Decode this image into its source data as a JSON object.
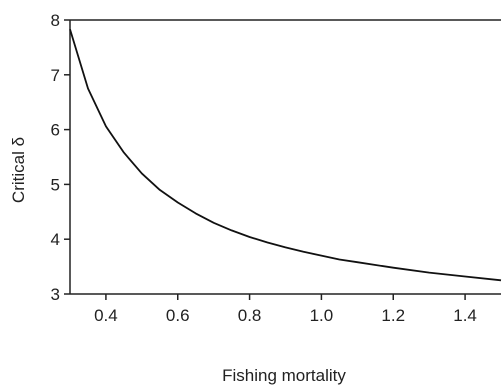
{
  "chart_data": {
    "type": "line",
    "title": "",
    "xlabel": "Fishing mortality",
    "ylabel": "Critical δ",
    "xlim": [
      0.3,
      1.5
    ],
    "ylim": [
      3,
      8
    ],
    "xticks": [
      0.4,
      0.6,
      0.8,
      1.0,
      1.2,
      1.4
    ],
    "xtick_labels": [
      "0.4",
      "0.6",
      "0.8",
      "1.0",
      "1.2",
      "1.4"
    ],
    "yticks": [
      3,
      4,
      5,
      6,
      7,
      8
    ],
    "ytick_labels": [
      "3",
      "4",
      "5",
      "6",
      "7",
      "8"
    ],
    "grid": false,
    "legend": "none",
    "series": [
      {
        "x": [
          0.3,
          0.35,
          0.4,
          0.45,
          0.5,
          0.55,
          0.6,
          0.65,
          0.7,
          0.75,
          0.8,
          0.85,
          0.9,
          0.95,
          1.0,
          1.05,
          1.1,
          1.2,
          1.3,
          1.4,
          1.5
        ],
        "y": [
          7.83,
          6.75,
          6.06,
          5.58,
          5.2,
          4.9,
          4.67,
          4.47,
          4.3,
          4.16,
          4.04,
          3.94,
          3.85,
          3.77,
          3.7,
          3.63,
          3.58,
          3.48,
          3.39,
          3.32,
          3.25
        ]
      }
    ]
  }
}
